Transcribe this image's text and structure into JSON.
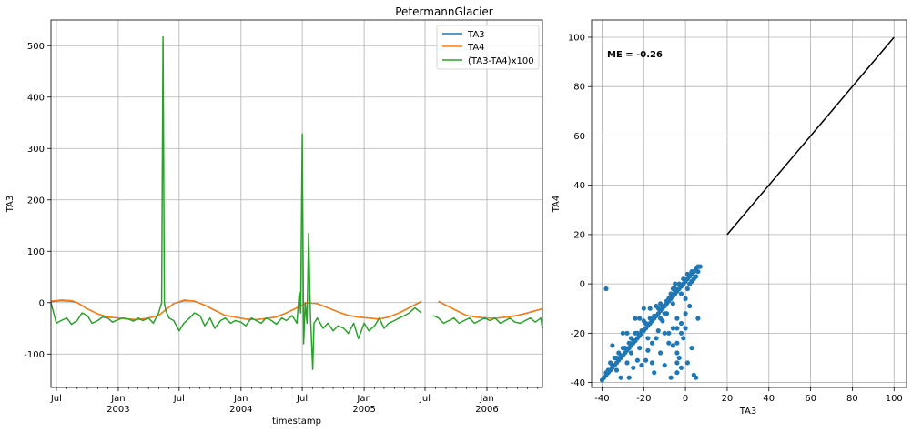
{
  "chart_data": [
    {
      "type": "line",
      "title": "PetermannGlacier",
      "xlabel": "timestamp",
      "ylabel": "TA3",
      "ylim": [
        -165,
        550
      ],
      "xlim": [
        "2002-06-15",
        "2006-06-15"
      ],
      "y_ticks": [
        -100,
        0,
        100,
        200,
        300,
        400,
        500
      ],
      "x_ticks_major": [
        {
          "date": "2002-07-01",
          "label": "Jul",
          "sub": ""
        },
        {
          "date": "2003-01-01",
          "label": "Jan",
          "sub": "2003"
        },
        {
          "date": "2003-07-01",
          "label": "Jul",
          "sub": ""
        },
        {
          "date": "2004-01-01",
          "label": "Jan",
          "sub": "2004"
        },
        {
          "date": "2004-07-01",
          "label": "Jul",
          "sub": ""
        },
        {
          "date": "2005-01-01",
          "label": "Jan",
          "sub": "2005"
        },
        {
          "date": "2005-07-01",
          "label": "Jul",
          "sub": ""
        },
        {
          "date": "2006-01-01",
          "label": "Jan",
          "sub": "2006"
        }
      ],
      "grid": true,
      "legend_position": "top-right",
      "series": [
        {
          "name": "TA3",
          "color": "#1f77b4",
          "x": [
            "2002-06-15",
            "2002-07-15",
            "2002-08-15",
            "2002-09-01",
            "2002-10-01",
            "2002-11-01",
            "2002-12-01",
            "2003-01-01",
            "2003-02-01",
            "2003-03-01",
            "2003-04-01",
            "2003-05-01",
            "2003-05-20",
            "2003-06-15",
            "2003-07-15",
            "2003-08-15",
            "2003-09-15",
            "2003-10-15",
            "2003-11-15",
            "2003-12-15",
            "2004-01-15",
            "2004-02-15",
            "2004-03-15",
            "2004-04-15",
            "2004-05-15",
            "2004-06-15",
            "2004-07-15",
            "2004-08-15",
            "2004-09-15",
            "2004-10-15",
            "2004-11-15",
            "2004-12-15",
            "2005-01-15",
            "2005-02-15",
            "2005-03-15",
            "2005-04-15",
            "2005-05-15",
            "2005-06-20",
            null,
            "2005-08-10",
            "2005-09-01",
            "2005-10-01",
            "2005-11-01",
            "2005-12-01",
            "2006-01-01",
            "2006-02-01",
            "2006-03-01",
            "2006-04-01",
            "2006-05-01",
            "2006-06-15"
          ],
          "y": [
            2,
            4,
            3,
            0,
            -12,
            -22,
            -28,
            -30,
            -32,
            -33,
            -30,
            -25,
            -15,
            -2,
            4,
            3,
            -5,
            -15,
            -25,
            -28,
            -32,
            -33,
            -31,
            -28,
            -20,
            -10,
            0,
            -2,
            -10,
            -18,
            -25,
            -28,
            -30,
            -32,
            -28,
            -20,
            -10,
            2,
            null,
            2,
            -5,
            -15,
            -25,
            -28,
            -30,
            -30,
            -28,
            -25,
            -20,
            -12
          ]
        },
        {
          "name": "TA4",
          "color": "#ff7f0e",
          "x": [
            "2002-06-15",
            "2002-07-15",
            "2002-08-15",
            "2002-09-01",
            "2002-10-01",
            "2002-11-01",
            "2002-12-01",
            "2003-01-01",
            "2003-02-01",
            "2003-03-01",
            "2003-04-01",
            "2003-05-01",
            "2003-05-20",
            "2003-06-15",
            "2003-07-15",
            "2003-08-15",
            "2003-09-15",
            "2003-10-15",
            "2003-11-15",
            "2003-12-15",
            "2004-01-15",
            "2004-02-15",
            "2004-03-15",
            "2004-04-15",
            "2004-05-15",
            "2004-06-15",
            "2004-07-15",
            "2004-08-15",
            "2004-09-15",
            "2004-10-15",
            "2004-11-15",
            "2004-12-15",
            "2005-01-15",
            "2005-02-15",
            "2005-03-15",
            "2005-04-15",
            "2005-05-15",
            "2005-06-20",
            null,
            "2005-08-10",
            "2005-09-01",
            "2005-10-01",
            "2005-11-01",
            "2005-12-01",
            "2006-01-01",
            "2006-02-01",
            "2006-03-01",
            "2006-04-01",
            "2006-05-01",
            "2006-06-15"
          ],
          "y": [
            3,
            5,
            4,
            0,
            -12,
            -22,
            -28,
            -30,
            -32,
            -33,
            -30,
            -25,
            -15,
            -2,
            5,
            3,
            -5,
            -15,
            -25,
            -28,
            -32,
            -33,
            -31,
            -28,
            -20,
            -10,
            0,
            -2,
            -10,
            -18,
            -25,
            -28,
            -30,
            -32,
            -28,
            -20,
            -10,
            3,
            null,
            3,
            -5,
            -15,
            -25,
            -28,
            -30,
            -30,
            -28,
            -25,
            -20,
            -12
          ]
        },
        {
          "name": "(TA3-TA4)x100",
          "color": "#2ca02c",
          "x": [
            "2002-06-15",
            "2002-07-01",
            "2002-07-15",
            "2002-08-01",
            "2002-08-15",
            "2002-09-01",
            "2002-09-15",
            "2002-10-01",
            "2002-10-15",
            "2002-11-01",
            "2002-11-15",
            "2002-12-01",
            "2002-12-15",
            "2003-01-01",
            "2003-01-15",
            "2003-02-01",
            "2003-02-15",
            "2003-03-01",
            "2003-03-15",
            "2003-04-01",
            "2003-04-15",
            "2003-05-01",
            "2003-05-10",
            "2003-05-14",
            "2003-05-18",
            "2003-05-22",
            "2003-06-01",
            "2003-06-15",
            "2003-07-01",
            "2003-07-15",
            "2003-08-01",
            "2003-08-15",
            "2003-09-01",
            "2003-09-15",
            "2003-10-01",
            "2003-10-15",
            "2003-11-01",
            "2003-11-15",
            "2003-12-01",
            "2003-12-15",
            "2004-01-01",
            "2004-01-15",
            "2004-02-01",
            "2004-02-15",
            "2004-03-01",
            "2004-03-15",
            "2004-04-01",
            "2004-04-15",
            "2004-05-01",
            "2004-05-15",
            "2004-06-01",
            "2004-06-15",
            "2004-06-22",
            "2004-06-26",
            "2004-07-01",
            "2004-07-05",
            "2004-07-10",
            "2004-07-15",
            "2004-07-20",
            "2004-07-25",
            "2004-08-01",
            "2004-08-05",
            "2004-08-15",
            "2004-09-01",
            "2004-09-15",
            "2004-10-01",
            "2004-10-15",
            "2004-11-01",
            "2004-11-15",
            "2004-12-01",
            "2004-12-15",
            "2005-01-01",
            "2005-01-15",
            "2005-02-01",
            "2005-02-15",
            "2005-03-01",
            "2005-03-15",
            "2005-04-01",
            "2005-04-15",
            "2005-05-01",
            "2005-05-15",
            "2005-06-01",
            "2005-06-20",
            null,
            "2005-07-25",
            "2005-08-10",
            "2005-08-25",
            "2005-09-10",
            "2005-09-25",
            "2005-10-10",
            "2005-10-25",
            "2005-11-10",
            "2005-11-25",
            "2005-12-10",
            "2005-12-25",
            "2006-01-10",
            "2006-01-25",
            "2006-02-10",
            "2006-02-25",
            "2006-03-10",
            "2006-03-25",
            "2006-04-10",
            "2006-04-25",
            "2006-05-10",
            "2006-05-25",
            "2006-06-10",
            "2006-06-15"
          ],
          "y": [
            0,
            -40,
            -35,
            -30,
            -42,
            -35,
            -20,
            -25,
            -40,
            -35,
            -28,
            -30,
            -38,
            -33,
            -30,
            -32,
            -36,
            -30,
            -35,
            -30,
            -40,
            -20,
            0,
            517,
            0,
            -15,
            -30,
            -35,
            -55,
            -40,
            -30,
            -20,
            -25,
            -45,
            -30,
            -50,
            -35,
            -30,
            -40,
            -35,
            -38,
            -45,
            -30,
            -35,
            -40,
            -30,
            -35,
            -42,
            -30,
            -35,
            -25,
            -40,
            20,
            -20,
            328,
            -80,
            0,
            -40,
            135,
            -20,
            -130,
            -40,
            -30,
            -50,
            -40,
            -55,
            -45,
            -50,
            -60,
            -40,
            -70,
            -40,
            -55,
            -45,
            -30,
            -50,
            -40,
            -35,
            -30,
            -25,
            -20,
            -10,
            -20,
            null,
            -25,
            -30,
            -40,
            -35,
            -30,
            -40,
            -35,
            -30,
            -40,
            -35,
            -30,
            -35,
            -30,
            -40,
            -35,
            -30,
            -38,
            -40,
            -35,
            -30,
            -38,
            -30,
            -50
          ]
        }
      ]
    },
    {
      "type": "scatter",
      "title": "",
      "xlabel": "TA3",
      "ylabel": "TA4",
      "xlim": [
        -45,
        106
      ],
      "ylim": [
        -42,
        107
      ],
      "x_ticks": [
        -40,
        -20,
        0,
        20,
        40,
        60,
        80,
        100
      ],
      "y_ticks": [
        -40,
        -20,
        0,
        20,
        40,
        60,
        80,
        100
      ],
      "grid": true,
      "annotation": "ME = -0.26",
      "points_color": "#1f77b4",
      "line_color": "#000000",
      "identity_line": {
        "x": [
          20,
          100
        ],
        "y": [
          20,
          100
        ]
      },
      "points": [
        [
          -40,
          -39
        ],
        [
          -38,
          -37
        ],
        [
          -37,
          -36
        ],
        [
          -36,
          -35
        ],
        [
          -35,
          -34
        ],
        [
          -34,
          -33
        ],
        [
          -33,
          -32
        ],
        [
          -32,
          -31
        ],
        [
          -31,
          -30
        ],
        [
          -30,
          -29
        ],
        [
          -29,
          -28
        ],
        [
          -28,
          -27
        ],
        [
          -27,
          -26
        ],
        [
          -26,
          -25
        ],
        [
          -25,
          -24
        ],
        [
          -24,
          -23
        ],
        [
          -23,
          -22
        ],
        [
          -22,
          -21
        ],
        [
          -21,
          -20
        ],
        [
          -20,
          -19
        ],
        [
          -19,
          -18
        ],
        [
          -18,
          -17
        ],
        [
          -17,
          -16
        ],
        [
          -16,
          -15
        ],
        [
          -15,
          -14
        ],
        [
          -14,
          -13
        ],
        [
          -13,
          -12
        ],
        [
          -12,
          -11
        ],
        [
          -11,
          -10
        ],
        [
          -10,
          -9
        ],
        [
          -9,
          -8
        ],
        [
          -8,
          -7
        ],
        [
          -7,
          -6
        ],
        [
          -6,
          -5
        ],
        [
          -5,
          -4
        ],
        [
          -4,
          -3
        ],
        [
          -3,
          -2
        ],
        [
          -2,
          -1
        ],
        [
          -1,
          0
        ],
        [
          0,
          1
        ],
        [
          1,
          2
        ],
        [
          2,
          3
        ],
        [
          3,
          4
        ],
        [
          4,
          5
        ],
        [
          5,
          6
        ],
        [
          6,
          7
        ],
        [
          7,
          7
        ],
        [
          -39,
          -38
        ],
        [
          -37,
          -35
        ],
        [
          -35,
          -33
        ],
        [
          -33,
          -30
        ],
        [
          -31,
          -29
        ],
        [
          -29,
          -26
        ],
        [
          -27,
          -24
        ],
        [
          -25,
          -23
        ],
        [
          -23,
          -20
        ],
        [
          -21,
          -19
        ],
        [
          -19,
          -16
        ],
        [
          -17,
          -14
        ],
        [
          -15,
          -13
        ],
        [
          -13,
          -10
        ],
        [
          -11,
          -9
        ],
        [
          -9,
          -7
        ],
        [
          -7,
          -4
        ],
        [
          -5,
          -2
        ],
        [
          -3,
          0
        ],
        [
          -1,
          2
        ],
        [
          1,
          4
        ],
        [
          3,
          5
        ],
        [
          -38,
          -2
        ],
        [
          -35,
          -25
        ],
        [
          -33,
          -35
        ],
        [
          -31,
          -38
        ],
        [
          -30,
          -20
        ],
        [
          -28,
          -32
        ],
        [
          -27,
          -38
        ],
        [
          -26,
          -22
        ],
        [
          -25,
          -34
        ],
        [
          -24,
          -14
        ],
        [
          -23,
          -31
        ],
        [
          -22,
          -26
        ],
        [
          -21,
          -33
        ],
        [
          -20,
          -15
        ],
        [
          -19,
          -31
        ],
        [
          -18,
          -27
        ],
        [
          -17,
          -10
        ],
        [
          -16,
          -32
        ],
        [
          -15,
          -36
        ],
        [
          -14,
          -9
        ],
        [
          -13,
          -19
        ],
        [
          -12,
          -28
        ],
        [
          -11,
          -15
        ],
        [
          -10,
          -33
        ],
        [
          -9,
          -12
        ],
        [
          -8,
          -20
        ],
        [
          -7,
          -38
        ],
        [
          -6,
          -25
        ],
        [
          -5,
          -3
        ],
        [
          -4,
          -14
        ],
        [
          -3,
          -30
        ],
        [
          -2,
          -1
        ],
        [
          -1,
          -22
        ],
        [
          0,
          -18
        ],
        [
          1,
          -32
        ],
        [
          2,
          -9
        ],
        [
          3,
          -26
        ],
        [
          4,
          -37
        ],
        [
          5,
          -38
        ],
        [
          6,
          -14
        ],
        [
          -4,
          -28
        ],
        [
          -4,
          -32
        ],
        [
          -4,
          -36
        ],
        [
          -4,
          -24
        ],
        [
          -4,
          -18
        ],
        [
          -2,
          -20
        ],
        [
          -2,
          -16
        ],
        [
          -2,
          -34
        ],
        [
          0,
          -6
        ],
        [
          0,
          -12
        ],
        [
          -20,
          -10
        ],
        [
          -22,
          -14
        ],
        [
          -24,
          -20
        ],
        [
          -26,
          -28
        ],
        [
          -28,
          -20
        ],
        [
          -30,
          -26
        ],
        [
          -32,
          -28
        ],
        [
          -34,
          -30
        ],
        [
          -36,
          -32
        ],
        [
          -38,
          -36
        ],
        [
          -12,
          -14
        ],
        [
          -10,
          -20
        ],
        [
          -8,
          -24
        ],
        [
          -6,
          -18
        ],
        [
          -14,
          -22
        ],
        [
          -16,
          -24
        ],
        [
          -18,
          -22
        ],
        [
          -10,
          -12
        ],
        [
          -6,
          -8
        ],
        [
          -2,
          -4
        ],
        [
          1,
          -2
        ],
        [
          2,
          0
        ],
        [
          3,
          1
        ],
        [
          4,
          2
        ],
        [
          5,
          3
        ],
        [
          6,
          5
        ],
        [
          -5,
          0
        ],
        [
          -6,
          -2
        ],
        [
          -8,
          -6
        ],
        [
          -12,
          -8
        ]
      ]
    }
  ]
}
